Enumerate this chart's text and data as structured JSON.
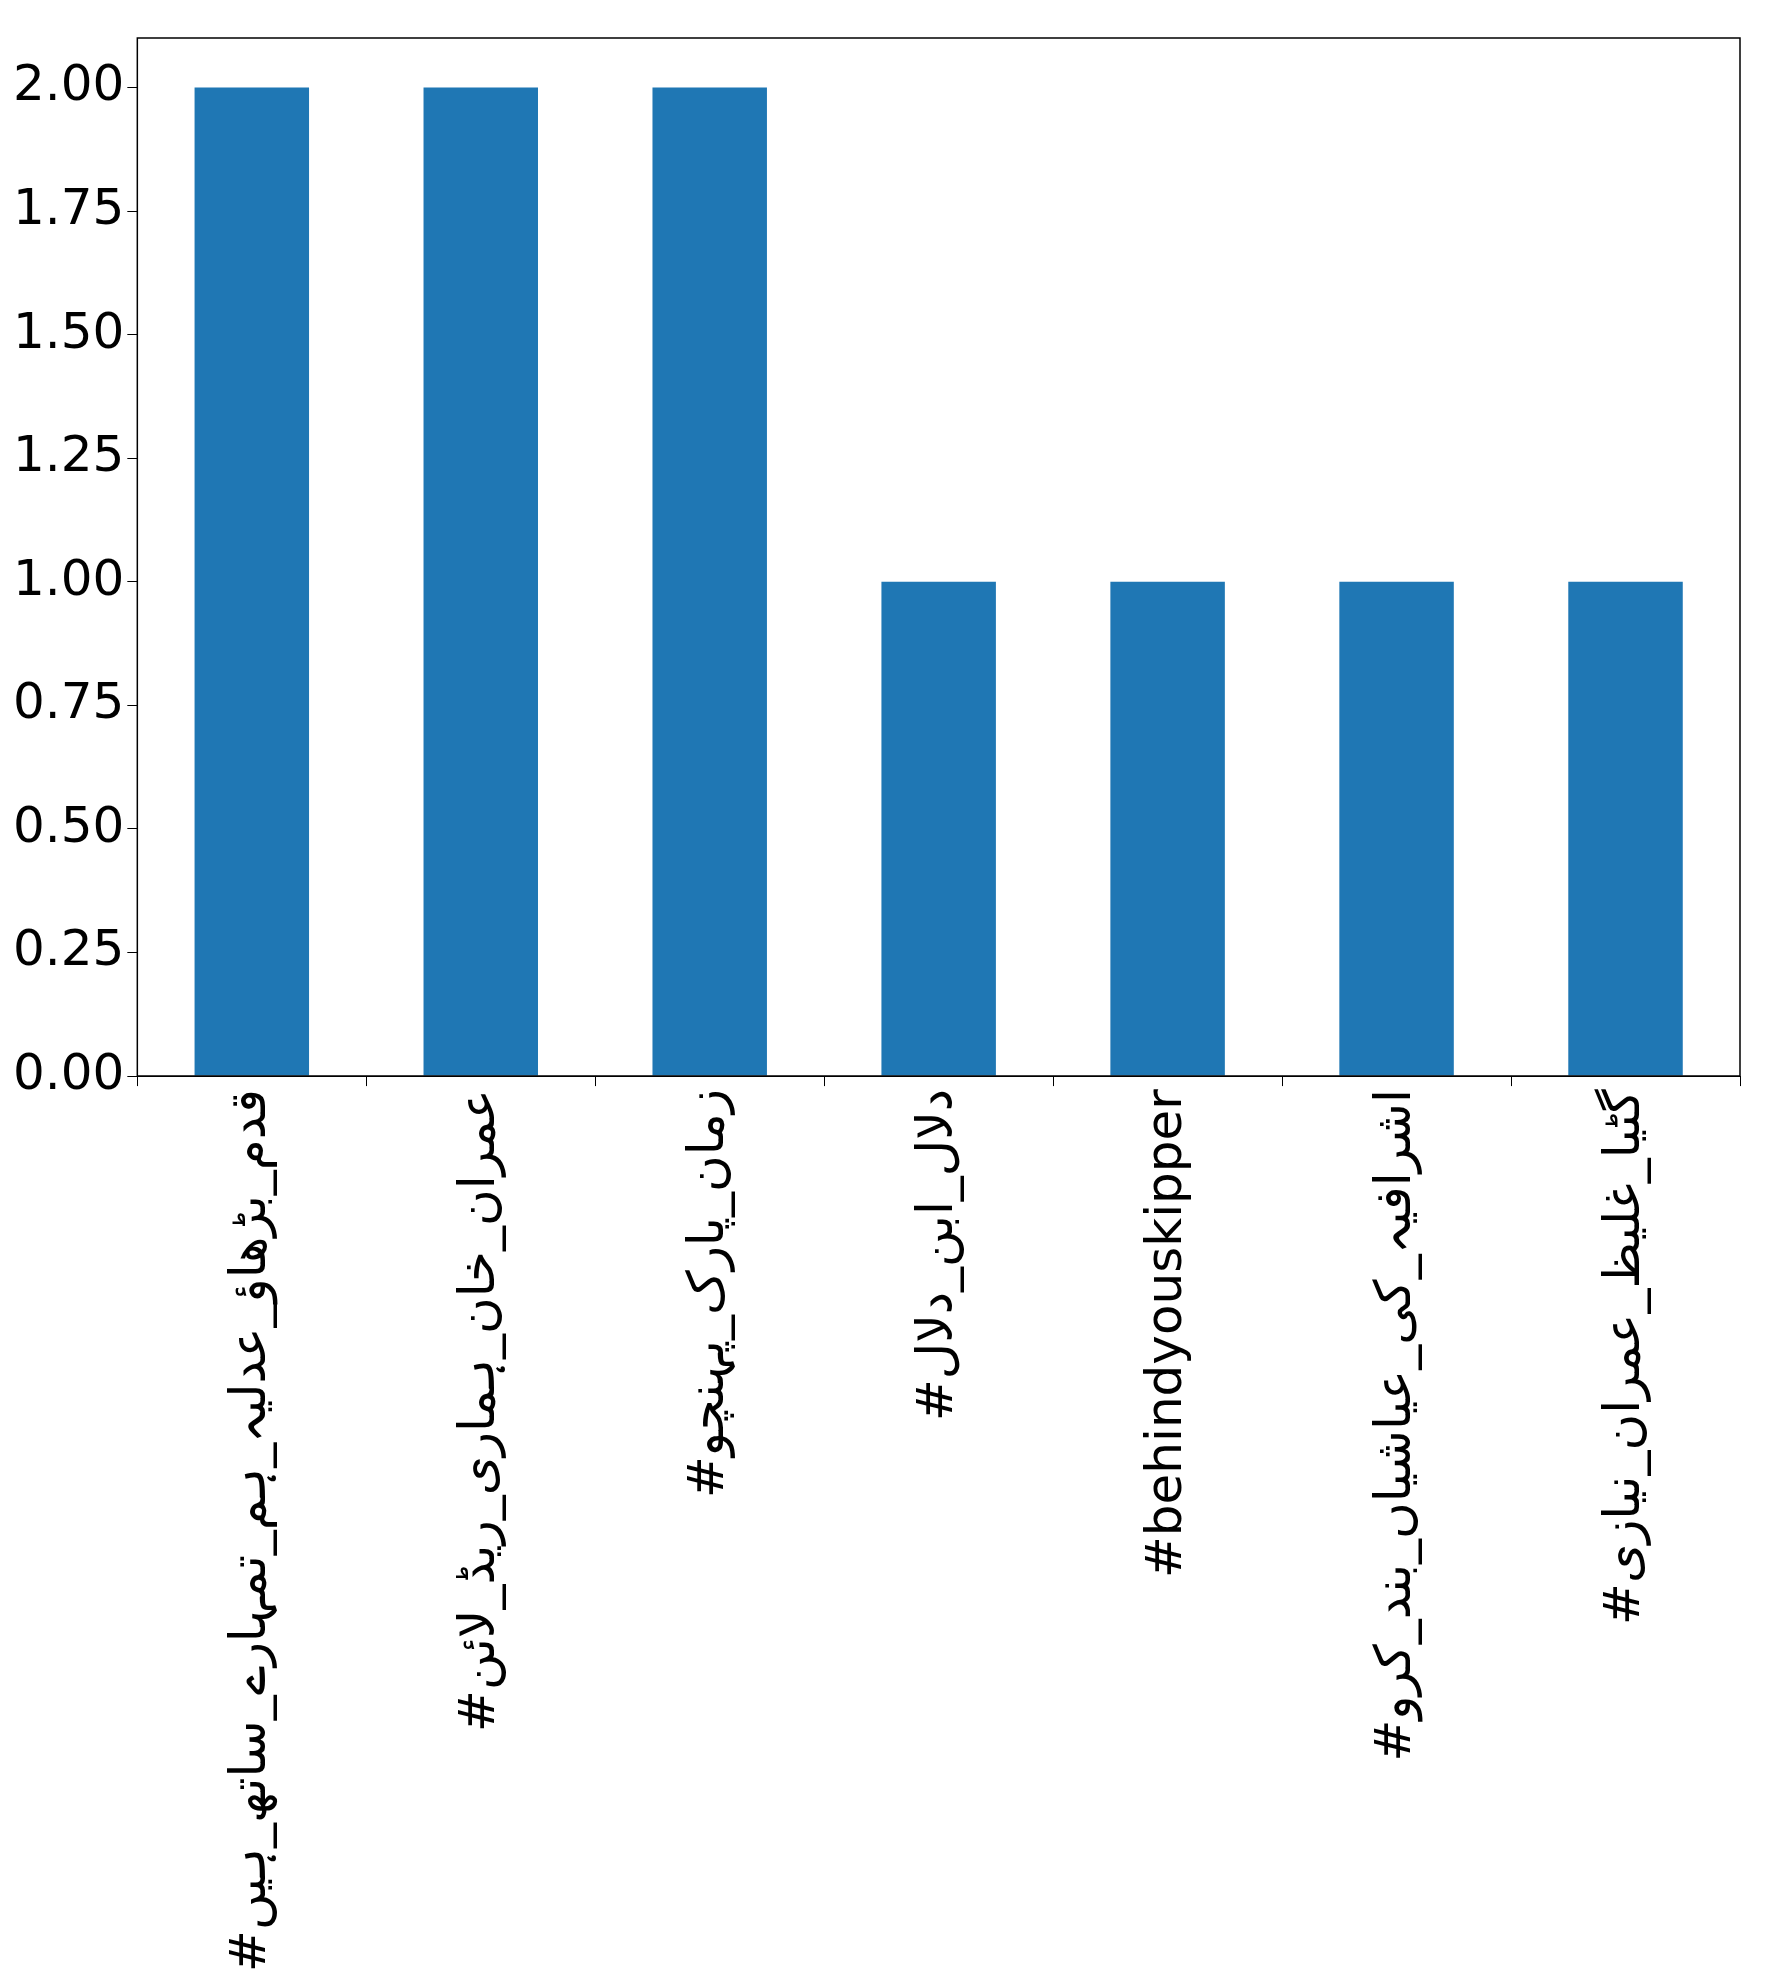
{
  "chart_data": {
    "type": "bar",
    "categories": [
      "#قدم_بڑھاؤ_عدلیہ_ہم_تمہارے_ساتھ_ہیں",
      "#عمران_خان_ہماری_ریڈ_لائن",
      "#زمان_پارک_پہنچو",
      "#دلال_ابن_دلال",
      "#behindyouskipper",
      "#اشرافیہ_کی_عیاشیاں_بند_کرو",
      "#گٹیا_غلیظ_عمران_نیازی"
    ],
    "values": [
      2,
      2,
      2,
      1,
      1,
      1,
      1
    ],
    "color": "#1f77b4",
    "ylim": [
      0,
      2.1
    ],
    "yticks": [
      {
        "value": 0,
        "label": "0.00"
      },
      {
        "value": 0.25,
        "label": "0.25"
      },
      {
        "value": 0.5,
        "label": "0.50"
      },
      {
        "value": 0.75,
        "label": "0.75"
      },
      {
        "value": 1,
        "label": "1.00"
      },
      {
        "value": 1.25,
        "label": "1.25"
      },
      {
        "value": 1.5,
        "label": "1.50"
      },
      {
        "value": 1.75,
        "label": "1.75"
      },
      {
        "value": 2,
        "label": "2.00"
      }
    ],
    "grid": false,
    "legend": false
  }
}
